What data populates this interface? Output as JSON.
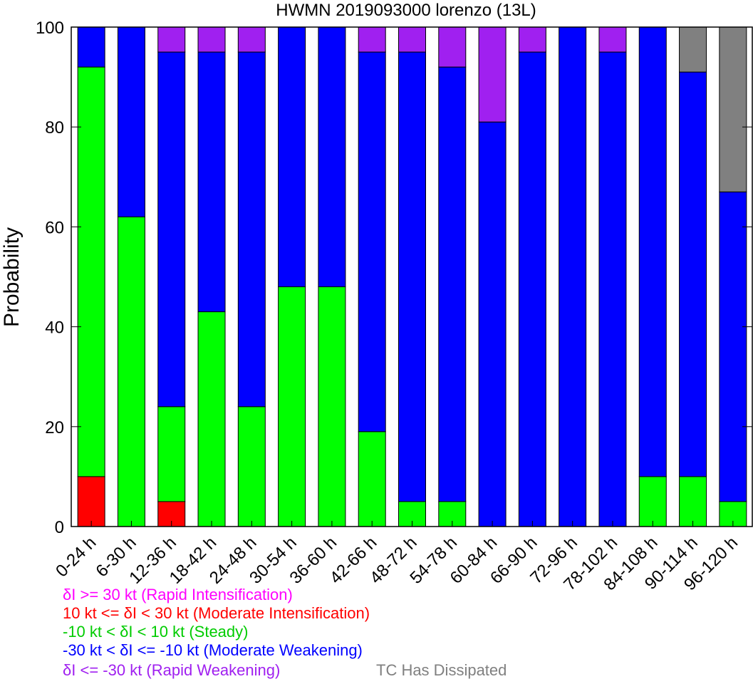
{
  "chart_data": {
    "type": "bar",
    "stacked": true,
    "title": "HWMN 2019093000 lorenzo (13L)",
    "xlabel": "",
    "ylabel": "Probability",
    "ylim": [
      0,
      100
    ],
    "yticks": [
      0,
      20,
      40,
      60,
      80,
      100
    ],
    "categories": [
      "0-24 h",
      "6-30 h",
      "12-36 h",
      "18-42 h",
      "24-48 h",
      "30-54 h",
      "36-60 h",
      "42-66 h",
      "48-72 h",
      "54-78 h",
      "60-84 h",
      "66-90 h",
      "72-96 h",
      "78-102 h",
      "84-108 h",
      "90-114 h",
      "96-120 h"
    ],
    "series": [
      {
        "name": "δI >= 30 kt (Rapid Intensification)",
        "color": "#ff00ff",
        "values": [
          0,
          0,
          0,
          0,
          0,
          0,
          0,
          0,
          0,
          0,
          0,
          0,
          0,
          0,
          0,
          0,
          0
        ]
      },
      {
        "name": "10 kt <= δI < 30 kt (Moderate Intensification)",
        "color": "#ff0000",
        "values": [
          10,
          0,
          5,
          0,
          0,
          0,
          0,
          0,
          0,
          0,
          0,
          0,
          0,
          0,
          0,
          0,
          0
        ]
      },
      {
        "name": "-10 kt < δI < 10 kt (Steady)",
        "color": "#00ff00",
        "values": [
          82,
          62,
          19,
          43,
          24,
          48,
          48,
          19,
          5,
          5,
          0,
          0,
          0,
          0,
          10,
          10,
          5
        ]
      },
      {
        "name": "-30 kt < δI <= -10 kt (Moderate Weakening)",
        "color": "#0000ff",
        "values": [
          8,
          38,
          71,
          52,
          71,
          52,
          52,
          76,
          90,
          87,
          81,
          95,
          100,
          95,
          90,
          81,
          62
        ]
      },
      {
        "name": "δI <= -30 kt (Rapid Weakening)",
        "color": "#a020f0",
        "values": [
          0,
          0,
          5,
          5,
          5,
          0,
          0,
          5,
          5,
          8,
          19,
          5,
          0,
          5,
          0,
          0,
          0
        ]
      },
      {
        "name": "TC Has Dissipated",
        "color": "#808080",
        "values": [
          0,
          0,
          0,
          0,
          0,
          0,
          0,
          0,
          0,
          0,
          0,
          0,
          0,
          0,
          0,
          9,
          33
        ]
      }
    ],
    "grid": false,
    "legend_position": "bottom"
  },
  "legend": [
    {
      "text": "δI >= 30 kt (Rapid Intensification)",
      "color": "#ff00ff"
    },
    {
      "text": "10 kt <= δI < 30 kt (Moderate Intensification)",
      "color": "#ff0000"
    },
    {
      "text": "-10 kt < δI < 10 kt (Steady)",
      "color": "#00cc00"
    },
    {
      "text": "-30 kt < δI <= -10 kt (Moderate Weakening)",
      "color": "#0000ff"
    },
    {
      "text": "δI <= -30 kt (Rapid Weakening)",
      "color": "#a020f0"
    },
    {
      "text": "TC Has Dissipated",
      "color": "#808080"
    }
  ]
}
